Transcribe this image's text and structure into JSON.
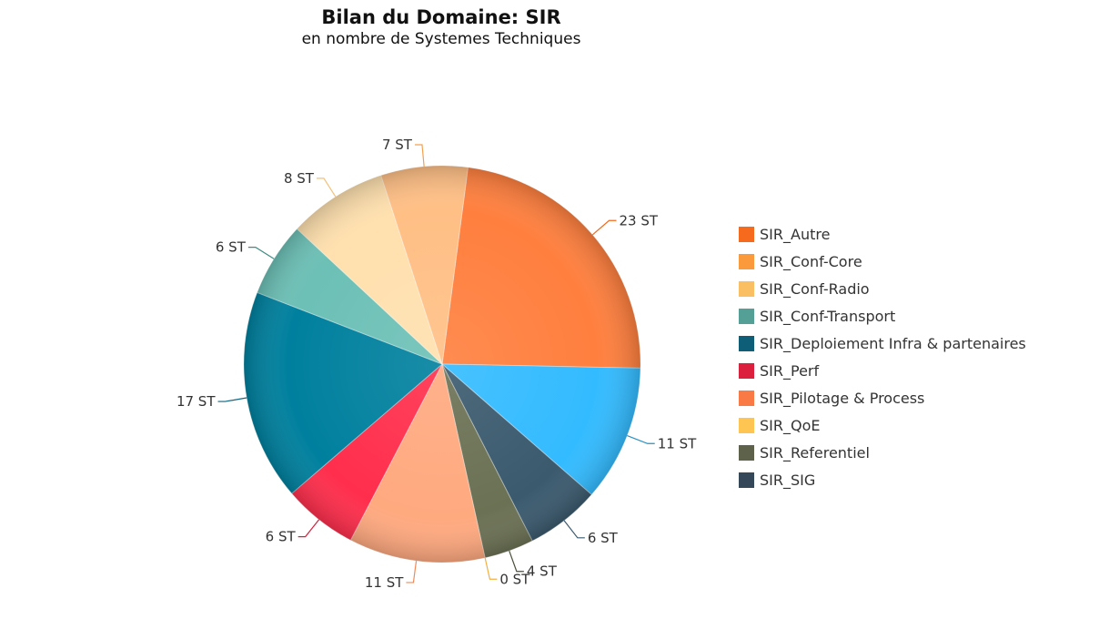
{
  "chart_data": {
    "type": "pie",
    "title": "Bilan du Domaine: SIR",
    "subtitle": "en nombre de Systemes Techniques",
    "slices": [
      {
        "name": "SIR_Autre",
        "value": 23,
        "label": "23 ST",
        "color": "#FF7F3E"
      },
      {
        "name": "SIR_Conf-Core",
        "value": 11,
        "label": "11 ST",
        "color": "#33BBFF"
      },
      {
        "name": "SIR_Conf-Radio",
        "value": 6,
        "label": "6 ST",
        "color": "#3B5A6E"
      },
      {
        "name": "SIR_Conf-Transport",
        "value": 4,
        "label": "4 ST",
        "color": "#6B7154"
      },
      {
        "name": "SIR_Deploiement Infra & partenaires",
        "value": 0,
        "label": "0 ST",
        "color": "#FFB94A"
      },
      {
        "name": "SIR_Perf",
        "value": 11,
        "label": "11 ST",
        "color": "#FFA97F"
      },
      {
        "name": "SIR_Pilotage & Process",
        "value": 6,
        "label": "6 ST",
        "color": "#FF2E4C"
      },
      {
        "name": "SIR_QoE",
        "value": 17,
        "label": "17 ST",
        "color": "#00809E"
      },
      {
        "name": "SIR_Referentiel",
        "value": 6,
        "label": "6 ST",
        "color": "#6CC0B6"
      },
      {
        "name": "SIR_SIG",
        "value": 8,
        "label": "8 ST",
        "color": "#FFE0AE"
      },
      {
        "name": "",
        "value": 7,
        "label": "7 ST",
        "color": "#FFBF85"
      }
    ],
    "legend": {
      "position": "right",
      "items": [
        {
          "label": "SIR_Autre",
          "color": "#F56A1C"
        },
        {
          "label": "SIR_Conf-Core",
          "color": "#FA9A3C"
        },
        {
          "label": "SIR_Conf-Radio",
          "color": "#FABF62"
        },
        {
          "label": "SIR_Conf-Transport",
          "color": "#55A096"
        },
        {
          "label": "SIR_Deploiement Infra & partenaires",
          "color": "#0F5E78"
        },
        {
          "label": "SIR_Perf",
          "color": "#DC1F3C"
        },
        {
          "label": "SIR_Pilotage & Process",
          "color": "#FA7A46"
        },
        {
          "label": "SIR_QoE",
          "color": "#FFC552"
        },
        {
          "label": "SIR_Referentiel",
          "color": "#5E624A"
        },
        {
          "label": "SIR_SIG",
          "color": "#34485A"
        }
      ]
    },
    "label_colors": [
      "#F26A1B",
      "#2A8FC4",
      "#3B5A6E",
      "#4A4E3A",
      "#F2B040",
      "#F08A5A",
      "#D81F3B",
      "#0E6580",
      "#3E8C82",
      "#F2C27A",
      "#F2A050"
    ]
  }
}
